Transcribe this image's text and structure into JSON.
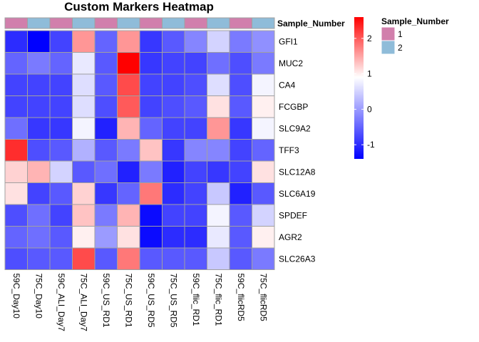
{
  "chart_data": {
    "type": "heatmap",
    "title": "Custom Markers Heatmap",
    "rows": [
      "GFI1",
      "MUC2",
      "CA4",
      "FCGBP",
      "SLC9A2",
      "TFF3",
      "SLC12A8",
      "SLC6A19",
      "SPDEF",
      "AGR2",
      "SLC26A3"
    ],
    "columns": [
      "59C_Day10",
      "75C_Day10",
      "59C_ALI_Day7",
      "75C_ALI_Day7",
      "59C_US_RD1",
      "75C_US_RD1",
      "59C_US_RD5",
      "75C_US_RD5",
      "59C_flic_RD1",
      "75C_flic_RD1",
      "59C_flicRD5",
      "75C_flicRD5"
    ],
    "values": [
      [
        -1.0,
        -1.4,
        -0.8,
        1.6,
        -0.5,
        1.6,
        -0.9,
        -0.6,
        -0.2,
        0.5,
        -0.3,
        -0.1
      ],
      [
        -0.5,
        -0.3,
        -0.5,
        0.7,
        -0.6,
        2.6,
        -0.9,
        -0.8,
        -0.8,
        -0.4,
        -0.7,
        -0.3
      ],
      [
        -0.8,
        -0.8,
        -0.8,
        0.6,
        -0.6,
        2.1,
        -0.8,
        -0.8,
        -0.7,
        0.6,
        -0.7,
        0.8
      ],
      [
        -0.8,
        -0.8,
        -0.8,
        0.6,
        -0.7,
        2.0,
        -0.8,
        -0.7,
        -0.6,
        1.1,
        -0.6,
        1.0
      ],
      [
        -0.4,
        -0.9,
        -0.9,
        0.8,
        -1.1,
        1.4,
        -0.5,
        -0.8,
        -0.8,
        1.6,
        -0.9,
        0.8
      ],
      [
        2.3,
        -0.7,
        -0.6,
        0.2,
        -0.6,
        -0.3,
        1.3,
        -0.9,
        -0.2,
        -0.2,
        -0.8,
        -0.5
      ],
      [
        1.2,
        1.4,
        0.5,
        -0.6,
        -0.4,
        -1.1,
        -0.3,
        -1.1,
        -0.8,
        -0.9,
        -0.8,
        1.1
      ],
      [
        1.1,
        -0.8,
        -0.6,
        1.2,
        -0.9,
        -0.5,
        1.8,
        -1.0,
        -0.8,
        0.4,
        -1.1,
        -0.6
      ],
      [
        -0.7,
        -0.4,
        -0.8,
        1.3,
        -0.3,
        1.4,
        -1.3,
        -0.8,
        -0.8,
        0.8,
        -0.6,
        0.5
      ],
      [
        -0.5,
        -0.4,
        -0.6,
        1.0,
        0.0,
        1.1,
        -1.3,
        -1.0,
        -1.0,
        0.7,
        -0.6,
        1.0
      ],
      [
        -0.7,
        -0.6,
        -0.6,
        2.1,
        -0.6,
        1.8,
        -0.6,
        -0.6,
        -0.6,
        0.4,
        -0.6,
        -0.3
      ]
    ],
    "annotation": {
      "name": "Sample_Number",
      "values": [
        "1",
        "2",
        "1",
        "2",
        "1",
        "2",
        "1",
        "2",
        "1",
        "2",
        "1",
        "2"
      ],
      "legend": [
        {
          "label": "1",
          "color": "#d17fac"
        },
        {
          "label": "2",
          "color": "#8fbcd9"
        }
      ]
    },
    "color_scale": {
      "low_color": "#0000ff",
      "mid_color": "#ffffff",
      "high_color": "#ff0000",
      "min": -1.4,
      "mid": 0.9,
      "max": 2.6,
      "ticks": [
        {
          "value": 2,
          "label": "2"
        },
        {
          "value": 1,
          "label": "1"
        },
        {
          "value": 0,
          "label": "0"
        },
        {
          "value": -1,
          "label": "-1"
        }
      ]
    },
    "cell_border_color": "#a0a0a0",
    "legend_position": "right"
  }
}
